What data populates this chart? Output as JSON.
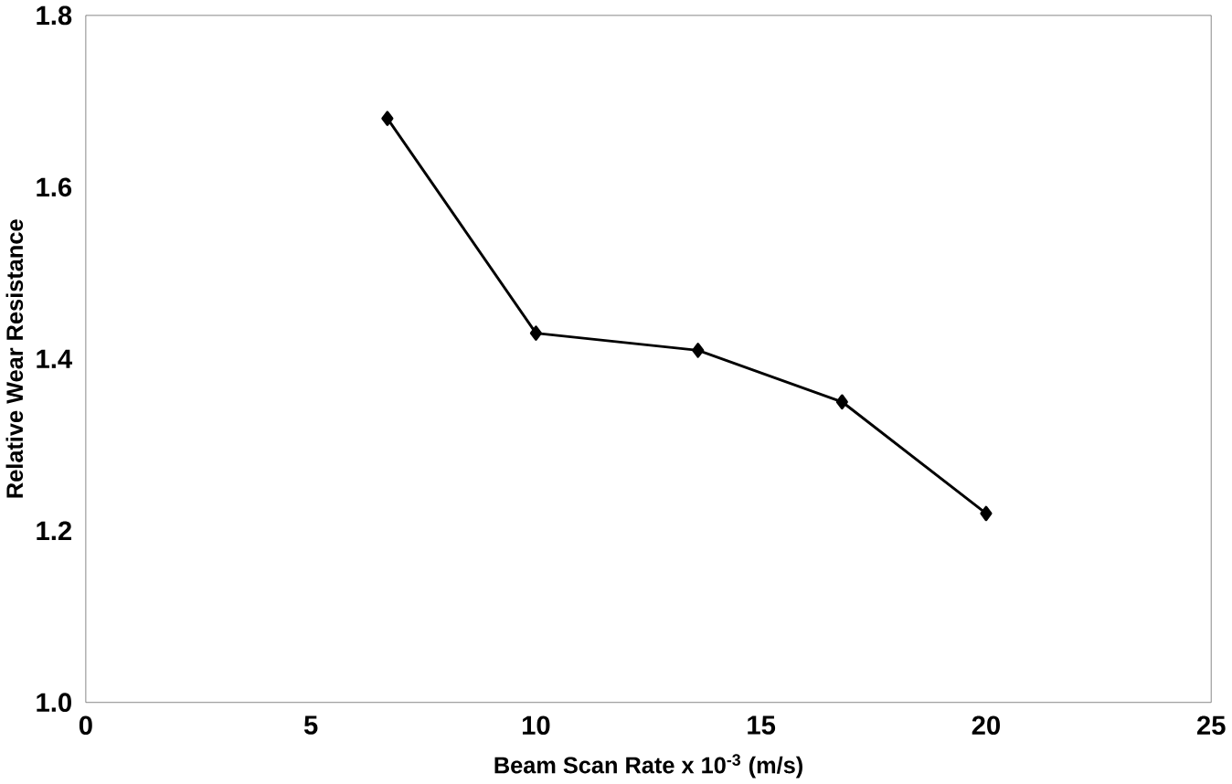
{
  "chart_data": {
    "type": "line",
    "xlabel": "Beam Scan Rate  x 10$^{-3}$ (m/s)",
    "ylabel": "Relative Wear Resistance",
    "x": [
      6.7,
      10,
      13.6,
      16.8,
      20
    ],
    "series": [
      {
        "color": "#000000",
        "values": [
          1.68,
          1.43,
          1.41,
          1.35,
          1.22
        ]
      }
    ],
    "xlim": [
      0,
      25
    ],
    "xticks": [
      0,
      5,
      10,
      15,
      20,
      25
    ],
    "ylim": [
      1.0,
      1.8
    ],
    "yticks": [
      {
        "value": 1.0,
        "label": "1.0"
      },
      {
        "value": 1.2,
        "label": "1.2"
      },
      {
        "value": 1.4,
        "label": "1.4"
      },
      {
        "value": 1.6,
        "label": "1.6"
      },
      {
        "value": 1.8,
        "label": "1.8"
      }
    ],
    "marker": "diamond",
    "line_style": "solid",
    "grid": false
  }
}
